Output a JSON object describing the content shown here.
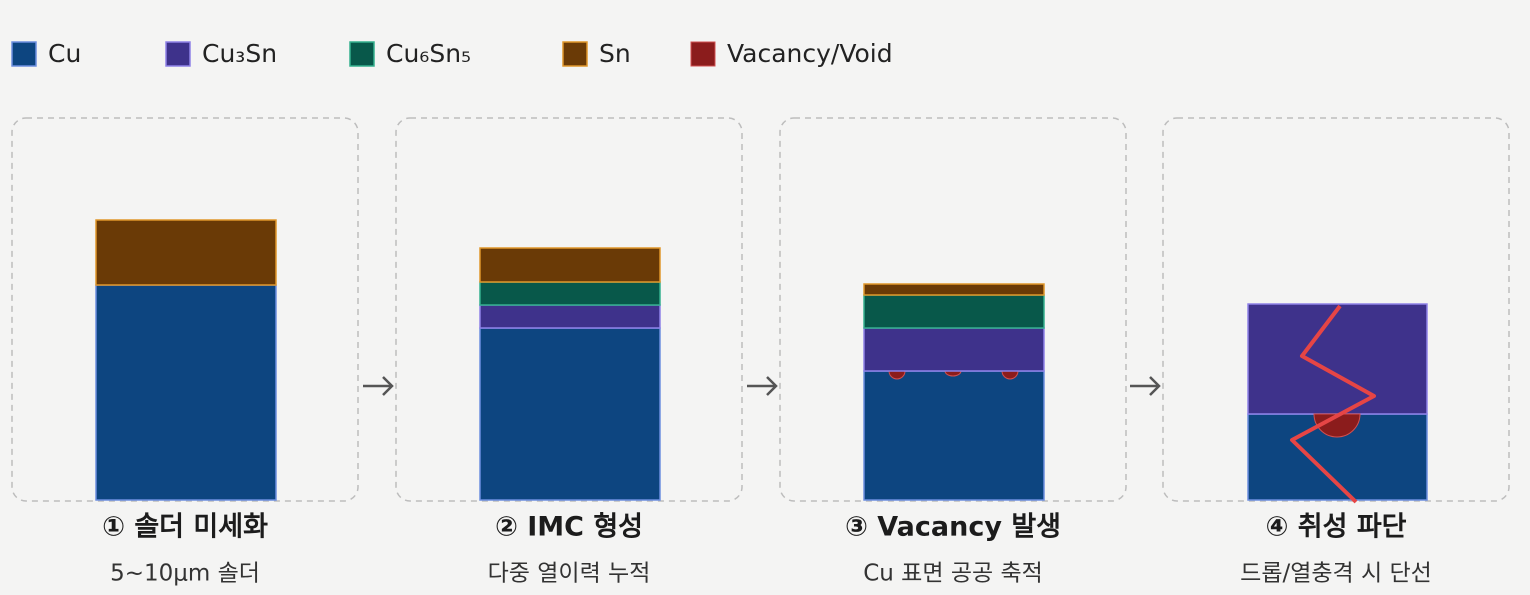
{
  "legend": [
    {
      "label": "Cu"
    },
    {
      "label": "Cu₃Sn"
    },
    {
      "label": "Cu₆Sn₅"
    },
    {
      "label": "Sn"
    },
    {
      "label": "Vacancy/Void"
    }
  ],
  "panels": [
    {
      "title": "① 솔더 미세화",
      "subtitle": "5~10μm 솔더"
    },
    {
      "title": "② IMC 형성",
      "subtitle": "다중 열이력 누적"
    },
    {
      "title": "③ Vacancy 발생",
      "subtitle": "Cu 표면 공공 축적"
    },
    {
      "title": "④ 취성 파단",
      "subtitle": "드롭/열충격 시 단선"
    }
  ]
}
